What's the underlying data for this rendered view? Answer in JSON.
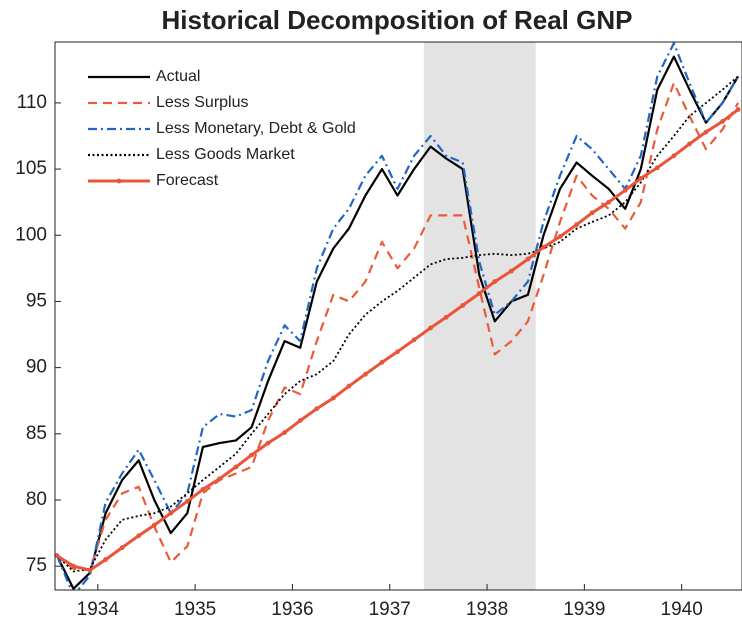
{
  "chart_data": {
    "type": "line",
    "title": "Historical Decomposition of Real GNP",
    "x": [
      1933.58,
      1933.75,
      1933.92,
      1934.08,
      1934.25,
      1934.42,
      1934.58,
      1934.75,
      1934.92,
      1935.08,
      1935.25,
      1935.42,
      1935.58,
      1935.75,
      1935.92,
      1936.08,
      1936.25,
      1936.42,
      1936.58,
      1936.75,
      1936.92,
      1937.08,
      1937.25,
      1937.42,
      1937.58,
      1937.75,
      1937.92,
      1938.08,
      1938.25,
      1938.42,
      1938.58,
      1938.75,
      1938.92,
      1939.08,
      1939.25,
      1939.42,
      1939.58,
      1939.75,
      1939.92,
      1940.08,
      1940.25,
      1940.42,
      1940.58
    ],
    "series": [
      {
        "name": "Actual",
        "color": "#000000",
        "line_style": "solid",
        "values": [
          75.8,
          73.3,
          74.5,
          79,
          81.5,
          83,
          80,
          77.5,
          79,
          84,
          84.3,
          84.5,
          85.5,
          89,
          92,
          91.5,
          96.5,
          99,
          100.5,
          103,
          105,
          103,
          105,
          106.7,
          105.8,
          105,
          97,
          93.5,
          95,
          95.5,
          100,
          103.5,
          105.5,
          104.5,
          103.5,
          102,
          105,
          111,
          113.5,
          111,
          108.5,
          110,
          112
        ]
      },
      {
        "name": "Less Surplus",
        "color": "#ec5a3c",
        "line_style": "dashed",
        "values": [
          75.8,
          74.8,
          74.7,
          78.5,
          80.5,
          81,
          78,
          75.3,
          76.5,
          80.5,
          81.5,
          82,
          82.5,
          86,
          88.5,
          88,
          92,
          95.5,
          95,
          96.5,
          99.5,
          97.5,
          99,
          101.5,
          101.5,
          101.5,
          96,
          91,
          92,
          93.5,
          97,
          101,
          104.5,
          103,
          102,
          100.5,
          102.5,
          108,
          111.5,
          109,
          106.5,
          108,
          110
        ]
      },
      {
        "name": "Less Monetary, Debt & Gold",
        "color": "#2166c4",
        "line_style": "dashdot",
        "values": [
          75.8,
          72.8,
          74.3,
          79.8,
          82,
          83.8,
          81.5,
          79,
          80.5,
          85.5,
          86.5,
          86.3,
          86.8,
          90.5,
          93.2,
          92,
          97.5,
          100.5,
          102,
          104.5,
          106,
          103.5,
          106,
          107.5,
          106,
          105.5,
          98,
          94,
          95,
          96.5,
          101,
          104.5,
          107.5,
          106.5,
          105,
          103.5,
          106,
          112,
          114.5,
          111.5,
          108.5,
          110,
          112
        ]
      },
      {
        "name": "Less Goods Market",
        "color": "#000000",
        "line_style": "dotted",
        "values": [
          75.8,
          74.6,
          74.8,
          77,
          78.5,
          78.8,
          79,
          79.5,
          80.5,
          81.5,
          82.5,
          83.5,
          85,
          86.5,
          88,
          89,
          89.5,
          90.5,
          92.5,
          94,
          95,
          95.8,
          96.8,
          97.8,
          98.2,
          98.3,
          98.5,
          98.6,
          98.5,
          98.6,
          99,
          99.5,
          100.5,
          101,
          101.5,
          102.5,
          104,
          106,
          107.5,
          109,
          110,
          111,
          112
        ]
      },
      {
        "name": "Forecast",
        "color": "#e8553a",
        "line_style": "solid",
        "marker": "o",
        "values": [
          75.8,
          75.0,
          74.7,
          75.5,
          76.4,
          77.3,
          78.1,
          79.0,
          79.9,
          80.8,
          81.6,
          82.5,
          83.4,
          84.3,
          85.1,
          86.0,
          86.9,
          87.7,
          88.6,
          89.5,
          90.4,
          91.2,
          92.1,
          93.0,
          93.8,
          94.7,
          95.6,
          96.5,
          97.3,
          98.2,
          99.1,
          99.9,
          100.8,
          101.7,
          102.5,
          103.4,
          104.3,
          105.1,
          106.0,
          106.9,
          107.8,
          108.6,
          109.5
        ]
      }
    ],
    "shaded_region": [
      1937.35,
      1938.5
    ],
    "shaded_color": "#e3e3e3",
    "xlim": [
      1933.56,
      1940.62
    ],
    "xticks": [
      1934,
      1935,
      1936,
      1937,
      1938,
      1939,
      1940
    ],
    "ylim": [
      73.2,
      114.6
    ],
    "yticks": [
      75,
      80,
      85,
      90,
      95,
      100,
      105,
      110
    ],
    "legend": "upper left"
  }
}
